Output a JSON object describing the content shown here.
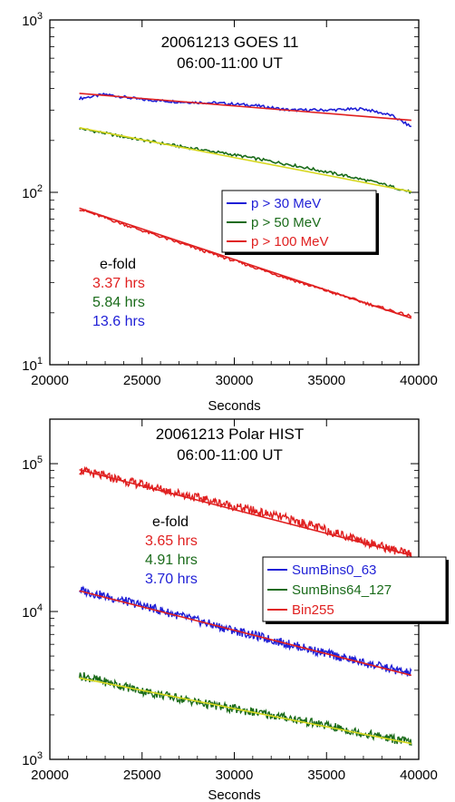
{
  "chart_data": [
    {
      "type": "line",
      "title": "20061213  GOES 11",
      "subtitle": "06:00-11:00 UT",
      "xlabel": "Seconds",
      "ylabel": "",
      "xlim": [
        20000,
        40000
      ],
      "ylim": [
        10,
        1000
      ],
      "yscale": "log",
      "grid": false,
      "legend_position": "right",
      "xticks": [
        20000,
        25000,
        30000,
        35000,
        40000
      ],
      "xtick_labels": [
        "20000",
        "25000",
        "30000",
        "35000",
        "40000"
      ],
      "ytick_labels": [
        {
          "base": "10",
          "exp": "1"
        },
        {
          "base": "10",
          "exp": "2"
        },
        {
          "base": "10",
          "exp": "3"
        }
      ],
      "series": [
        {
          "name": "p > 30 MeV",
          "color": "#1f1fd6",
          "x": [
            21600,
            23000,
            25000,
            27000,
            29000,
            31000,
            33000,
            35000,
            37000,
            38500,
            39600
          ],
          "y": [
            350,
            370,
            345,
            335,
            330,
            320,
            300,
            300,
            305,
            280,
            240
          ]
        },
        {
          "name": "p > 50 MeV",
          "color": "#1a6b1a",
          "x": [
            21600,
            24000,
            27000,
            30000,
            33000,
            36000,
            38000,
            39600
          ],
          "y": [
            235,
            210,
            185,
            165,
            145,
            125,
            112,
            100
          ]
        },
        {
          "name": "p > 100 MeV",
          "color": "#e02020",
          "x": [
            21600,
            25000,
            28000,
            31000,
            34000,
            37000,
            39600
          ],
          "y": [
            80,
            60,
            47,
            37,
            29,
            23,
            19
          ]
        }
      ],
      "fits": [
        {
          "color": "#e02020",
          "x": [
            21600,
            39600
          ],
          "y": [
            375,
            262
          ]
        },
        {
          "color": "#d8d820",
          "x": [
            21600,
            39600
          ],
          "y": [
            237,
            101
          ]
        },
        {
          "color": "#e02020",
          "x": [
            21600,
            39600
          ],
          "y": [
            81,
            18.6
          ]
        }
      ],
      "efold": {
        "heading": "e-fold",
        "items": [
          {
            "text": "3.37 hrs",
            "color": "#e02020"
          },
          {
            "text": "5.84 hrs",
            "color": "#1a6b1a"
          },
          {
            "text": "13.6 hrs",
            "color": "#1f1fd6"
          }
        ]
      }
    },
    {
      "type": "line",
      "title": "20061213  Polar HIST",
      "subtitle": "06:00-11:00 UT",
      "xlabel": "Seconds",
      "ylabel": "",
      "xlim": [
        20000,
        40000
      ],
      "ylim": [
        1000,
        200000
      ],
      "yscale": "log",
      "grid": false,
      "legend_position": "right",
      "xticks": [
        20000,
        25000,
        30000,
        35000,
        40000
      ],
      "xtick_labels": [
        "20000",
        "25000",
        "30000",
        "35000",
        "40000"
      ],
      "ytick_labels": [
        {
          "base": "10",
          "exp": "3"
        },
        {
          "base": "10",
          "exp": "4"
        },
        {
          "base": "10",
          "exp": "5"
        }
      ],
      "series": [
        {
          "name": "SumBins0_63",
          "color": "#1f1fd6",
          "x": [
            21600,
            25000,
            29000,
            33000,
            37000,
            39600
          ],
          "y": [
            14000,
            11000,
            8000,
            6000,
            4500,
            3800
          ]
        },
        {
          "name": "SumBins64_127",
          "color": "#1a6b1a",
          "x": [
            21600,
            25000,
            29000,
            33000,
            37000,
            39600
          ],
          "y": [
            3700,
            2900,
            2300,
            1900,
            1500,
            1300
          ]
        },
        {
          "name": "Bin255",
          "color": "#e02020",
          "x": [
            21600,
            25000,
            29000,
            33000,
            37000,
            39600
          ],
          "y": [
            90000,
            72000,
            55000,
            42000,
            30000,
            24000
          ]
        }
      ],
      "fits": [
        {
          "color": "#e02020",
          "x": [
            21600,
            39600
          ],
          "y": [
            91000,
            24000
          ]
        },
        {
          "color": "#e02020",
          "x": [
            21600,
            39600
          ],
          "y": [
            13800,
            3700
          ]
        },
        {
          "color": "#d8d820",
          "x": [
            21600,
            39600
          ],
          "y": [
            3550,
            1280
          ]
        }
      ],
      "efold": {
        "heading": "e-fold",
        "items": [
          {
            "text": "3.65 hrs",
            "color": "#e02020"
          },
          {
            "text": "4.91 hrs",
            "color": "#1a6b1a"
          },
          {
            "text": "3.70 hrs",
            "color": "#1f1fd6"
          }
        ]
      }
    }
  ]
}
